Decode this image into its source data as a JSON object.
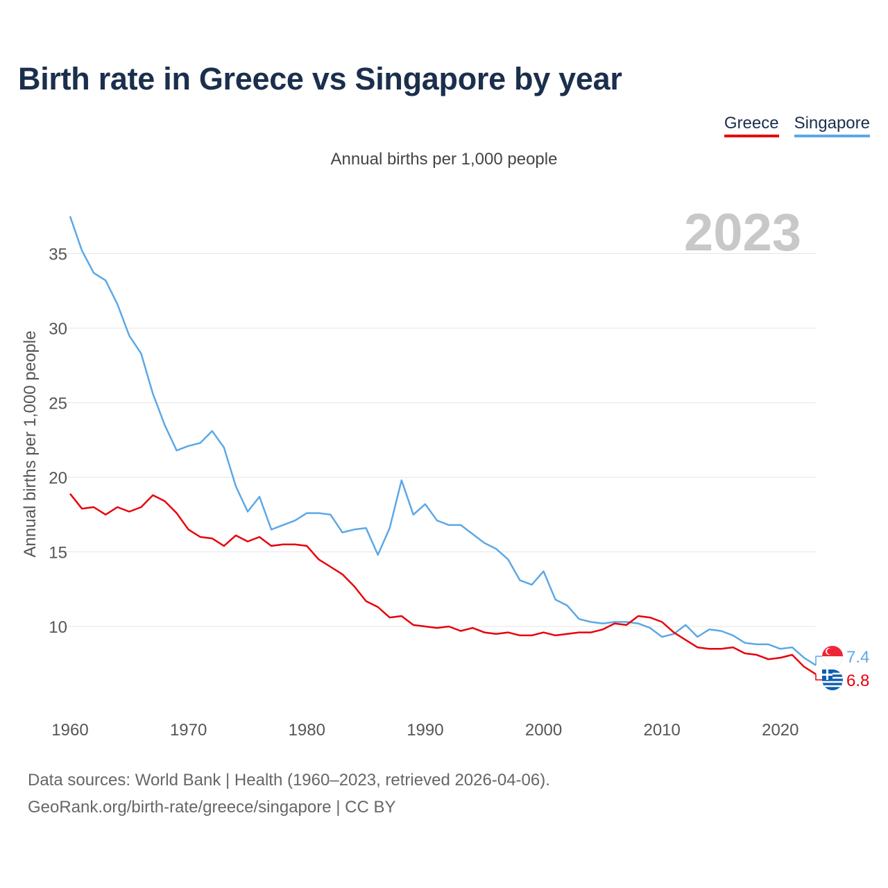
{
  "chart_data": {
    "type": "line",
    "title": "Birth rate in Greece vs Singapore by year",
    "subtitle": "Annual births per 1,000 people",
    "ylabel": "Annual births per 1,000 people",
    "xlabel": "",
    "year_label": "2023",
    "xlim": [
      1960,
      2023
    ],
    "ylim": [
      5,
      38
    ],
    "x_ticks": [
      1960,
      1970,
      1980,
      1990,
      2000,
      2010,
      2020
    ],
    "y_ticks": [
      10,
      15,
      20,
      25,
      30,
      35
    ],
    "grid": true,
    "legend_position": "top-right",
    "x": [
      1960,
      1961,
      1962,
      1963,
      1964,
      1965,
      1966,
      1967,
      1968,
      1969,
      1970,
      1971,
      1972,
      1973,
      1974,
      1975,
      1976,
      1977,
      1978,
      1979,
      1980,
      1981,
      1982,
      1983,
      1984,
      1985,
      1986,
      1987,
      1988,
      1989,
      1990,
      1991,
      1992,
      1993,
      1994,
      1995,
      1996,
      1997,
      1998,
      1999,
      2000,
      2001,
      2002,
      2003,
      2004,
      2005,
      2006,
      2007,
      2008,
      2009,
      2010,
      2011,
      2012,
      2013,
      2014,
      2015,
      2016,
      2017,
      2018,
      2019,
      2020,
      2021,
      2022,
      2023
    ],
    "series": [
      {
        "name": "Greece",
        "color": "#e8000b",
        "end_label": "6.8",
        "flag": "greece-flag-icon",
        "values": [
          18.9,
          17.9,
          18.0,
          17.5,
          18.0,
          17.7,
          18.0,
          18.8,
          18.4,
          17.6,
          16.5,
          16.0,
          15.9,
          15.4,
          16.1,
          15.7,
          16.0,
          15.4,
          15.5,
          15.5,
          15.4,
          14.5,
          14.0,
          13.5,
          12.7,
          11.7,
          11.3,
          10.6,
          10.7,
          10.1,
          10.0,
          9.9,
          10.0,
          9.7,
          9.9,
          9.6,
          9.5,
          9.6,
          9.4,
          9.4,
          9.6,
          9.4,
          9.5,
          9.6,
          9.6,
          9.8,
          10.2,
          10.1,
          10.7,
          10.6,
          10.3,
          9.6,
          9.1,
          8.6,
          8.5,
          8.5,
          8.6,
          8.2,
          8.1,
          7.8,
          7.9,
          8.1,
          7.3,
          6.8
        ]
      },
      {
        "name": "Singapore",
        "color": "#5ca8e6",
        "end_label": "7.4",
        "flag": "singapore-flag-icon",
        "values": [
          37.5,
          35.2,
          33.7,
          33.2,
          31.6,
          29.5,
          28.3,
          25.6,
          23.5,
          21.8,
          22.1,
          22.3,
          23.1,
          22.0,
          19.4,
          17.7,
          18.7,
          16.5,
          16.8,
          17.1,
          17.6,
          17.6,
          17.5,
          16.3,
          16.5,
          16.6,
          14.8,
          16.6,
          19.8,
          17.5,
          18.2,
          17.1,
          16.8,
          16.8,
          16.2,
          15.6,
          15.2,
          14.5,
          13.1,
          12.8,
          13.7,
          11.8,
          11.4,
          10.5,
          10.3,
          10.2,
          10.3,
          10.3,
          10.2,
          9.9,
          9.3,
          9.5,
          10.1,
          9.3,
          9.8,
          9.7,
          9.4,
          8.9,
          8.8,
          8.8,
          8.5,
          8.6,
          7.9,
          7.4
        ]
      }
    ]
  },
  "footer": {
    "source_line": "Data sources: World Bank | Health (1960–2023, retrieved 2026-04-06).",
    "credit_line": "GeoRank.org/birth-rate/greece/singapore | CC BY"
  }
}
